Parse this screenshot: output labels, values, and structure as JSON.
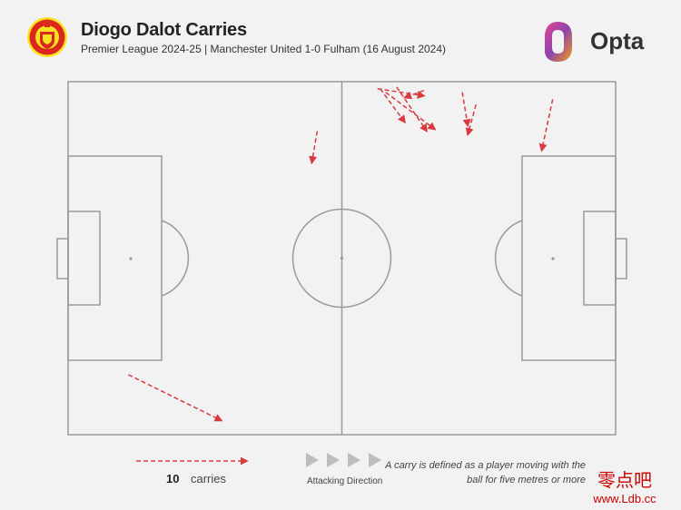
{
  "header": {
    "title": "Diogo Dalot Carries",
    "subtitle": "Premier League 2024-25 | Manchester United 1-0 Fulham (16 August 2024)",
    "brand": "Opta"
  },
  "colors": {
    "carry": "#d93a3f",
    "pitch_lines": "#9a9a9a",
    "background": "#f2f2f2",
    "crest_red": "#da291c",
    "crest_gold": "#fbe122"
  },
  "chart_data": {
    "type": "scatter",
    "subtype": "pitch-arrows",
    "x_range": [
      0,
      100
    ],
    "y_range": [
      0,
      100
    ],
    "attacking_direction": "left-to-right",
    "carries": [
      {
        "x1": 11,
        "y1": 83,
        "x2": 28,
        "y2": 96
      },
      {
        "x1": 45.5,
        "y1": 14,
        "x2": 44.5,
        "y2": 23
      },
      {
        "x1": 56.5,
        "y1": 2,
        "x2": 65,
        "y2": 4
      },
      {
        "x1": 57,
        "y1": 2,
        "x2": 61.5,
        "y2": 11.5
      },
      {
        "x1": 60,
        "y1": 1.5,
        "x2": 65.5,
        "y2": 14
      },
      {
        "x1": 58,
        "y1": 3,
        "x2": 67,
        "y2": 13.5
      },
      {
        "x1": 65,
        "y1": 2.5,
        "x2": 61.5,
        "y2": 4.5
      },
      {
        "x1": 72,
        "y1": 3,
        "x2": 73,
        "y2": 12.5
      },
      {
        "x1": 74.5,
        "y1": 6.5,
        "x2": 73,
        "y2": 15
      },
      {
        "x1": 88.5,
        "y1": 5,
        "x2": 86.5,
        "y2": 19.5
      }
    ]
  },
  "legend": {
    "count": "10",
    "count_label": "carries",
    "direction_label": "Attacking Direction",
    "note": "A carry is defined as a player moving with the ball for five metres or more"
  },
  "watermark": {
    "cn": "零点吧",
    "url": "www.Ldb.cc"
  }
}
